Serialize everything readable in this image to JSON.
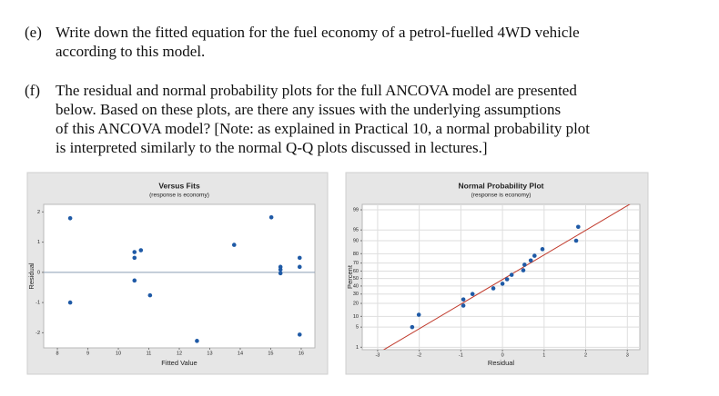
{
  "questions": [
    {
      "label": "(e)",
      "lines": [
        "Write down the fitted equation for the fuel economy of a petrol-fuelled 4WD vehicle",
        "according to this model."
      ]
    },
    {
      "label": "(f)",
      "lines": [
        "The residual and normal probability plots for the full ANCOVA model are presented",
        "below. Based on these plots, are there any issues with the underlying assumptions",
        "of this ANCOVA model? [Note: as explained in Practical 10, a normal probability plot",
        "is interpreted similarly to the normal Q-Q plots discussed in lectures.]"
      ]
    }
  ],
  "chart_data": [
    {
      "type": "scatter",
      "title": "Versus Fits",
      "subtitle": "(response is economy)",
      "x_label": "Fitted Value",
      "y_label": "Residual",
      "x": [
        8.42,
        8.42,
        10.53,
        10.74,
        10.53,
        10.53,
        11.04,
        12.58,
        13.8,
        15.02,
        15.32,
        15.32,
        15.32,
        15.95,
        15.95,
        15.95
      ],
      "values": [
        1.79,
        -1.0,
        0.67,
        0.73,
        0.48,
        -0.27,
        -0.76,
        -2.27,
        0.91,
        1.82,
        0.09,
        -0.03,
        0.18,
        0.48,
        0.18,
        -2.06
      ],
      "color": "#1f5aa6",
      "xlim": [
        7.55,
        16.45
      ],
      "ylim": [
        -2.5,
        2.25
      ],
      "xticks": [
        8,
        9,
        10,
        11,
        12,
        13,
        14,
        15,
        16
      ],
      "yticks": [
        -2,
        -1,
        0,
        1,
        2
      ],
      "reference_line": 0,
      "reference_color": "#8a9db5",
      "grid": false
    },
    {
      "type": "scatter",
      "title": "Normal Probability Plot",
      "subtitle": "(response is economy)",
      "x_label": "Residual",
      "y_label": "Percent",
      "x": [
        -2.17,
        -2.01,
        -0.94,
        -0.94,
        -0.72,
        -0.22,
        0.0,
        0.11,
        0.22,
        0.5,
        0.53,
        0.68,
        0.77,
        0.96,
        1.77,
        1.82
      ],
      "values": [
        5,
        11,
        18,
        24,
        30,
        37,
        43,
        49,
        55,
        61,
        68,
        73,
        78,
        84,
        90,
        96
      ],
      "color": "#1f5aa6",
      "xlim": [
        -3.37,
        3.3
      ],
      "ylim": [
        0.8,
        99.4
      ],
      "y_scale": "normal-probability",
      "xticks": [
        -3,
        -2,
        -1,
        0,
        1,
        2,
        3
      ],
      "yticks": [
        1,
        5,
        10,
        20,
        30,
        40,
        50,
        60,
        70,
        80,
        90,
        95,
        99
      ],
      "fit_line": {
        "mean": 0.04,
        "sd": 1.2,
        "color": "#c0392b"
      },
      "grid": true
    }
  ]
}
